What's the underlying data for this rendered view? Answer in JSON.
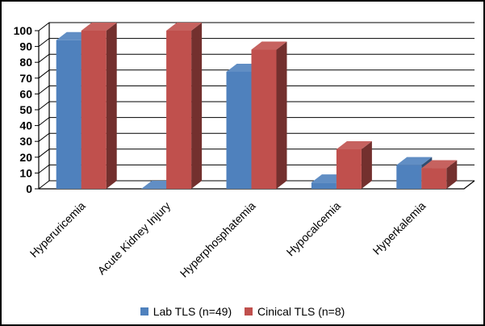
{
  "chart_data": {
    "type": "bar",
    "title": "",
    "xlabel": "",
    "ylabel": "",
    "ylim": [
      0,
      100
    ],
    "yticks": [
      0,
      10,
      20,
      30,
      40,
      50,
      60,
      70,
      80,
      90,
      100
    ],
    "grid": true,
    "legend_position": "bottom",
    "categories": [
      "Hyperuricemia",
      "Acute Kidney Injury",
      "Hyperphosphatemia",
      "Hypocalcemia",
      "Hyperkalemia"
    ],
    "series": [
      {
        "name": "Lab TLS (n=49)",
        "color": "#4f81bd",
        "values": [
          94,
          0,
          74,
          4,
          15
        ]
      },
      {
        "name": "Cinical TLS  (n=8)",
        "color": "#c0504d",
        "values": [
          100,
          100,
          88,
          25,
          13
        ]
      }
    ]
  }
}
